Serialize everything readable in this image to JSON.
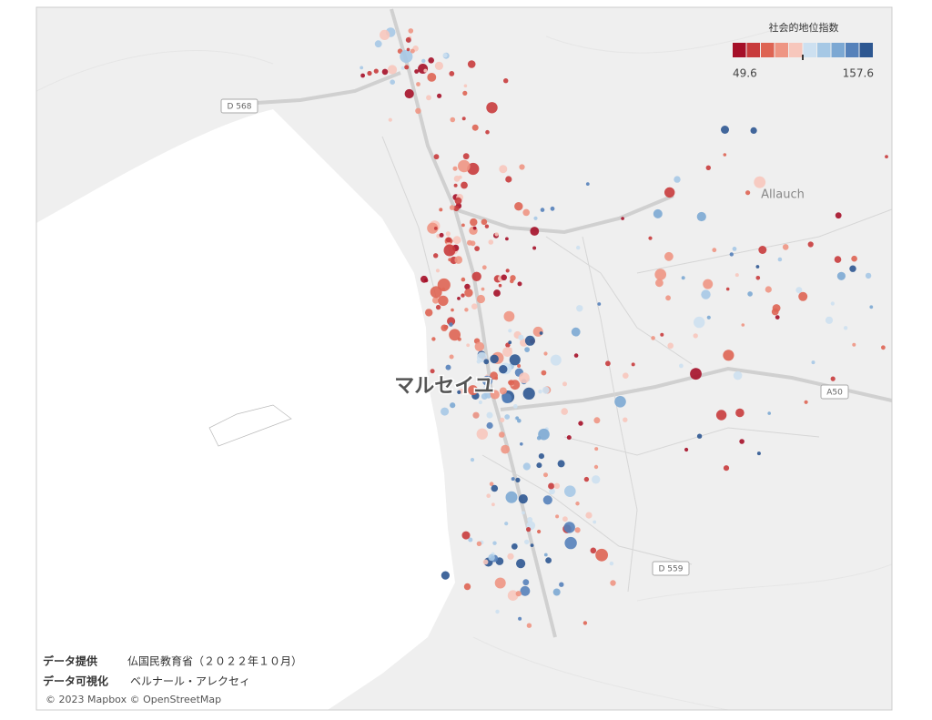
{
  "legend": {
    "title": "社会的地位指数",
    "min": 49.6,
    "max": 157.6,
    "colors": [
      "#a50f28",
      "#c83b3c",
      "#de6453",
      "#ee9583",
      "#f7c7bc",
      "#cde0f0",
      "#a6c8e5",
      "#7ca8d3",
      "#5581ba",
      "#2d5791"
    ]
  },
  "map_labels": {
    "city": "マルセイユ",
    "town": "Allauch",
    "roads": [
      "D 568",
      "D 559",
      "A50"
    ]
  },
  "credits": {
    "source_label": "データ提供",
    "source": "仏国民教育省（２０２２年１０月）",
    "viz_label": "データ可視化",
    "viz": "ベルナール・アレクセィ",
    "copyright": "© 2023 Mapbox © OpenStreetMap"
  }
}
